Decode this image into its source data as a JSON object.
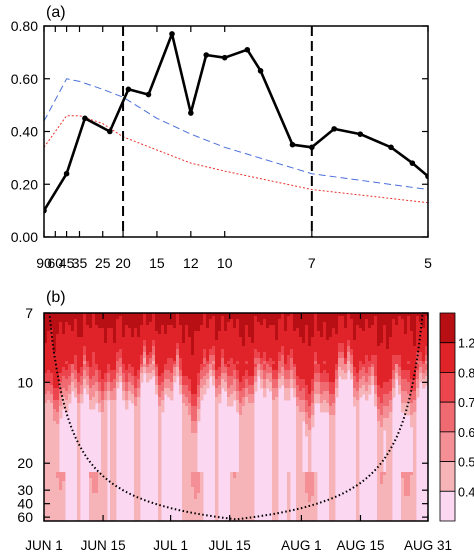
{
  "chart_data": [
    {
      "panel_label": "(a)",
      "type": "line",
      "x_scale": "reciprocal",
      "x_ticks": [
        90,
        60,
        45,
        35,
        25,
        20,
        15,
        12,
        10,
        7,
        5
      ],
      "xlim": [
        90,
        5
      ],
      "ylim": [
        0,
        0.8
      ],
      "y_ticks": [
        "0.00",
        "0.20",
        "0.40",
        "0.60",
        "0.80"
      ],
      "vertical_lines": [
        20,
        7
      ],
      "series": [
        {
          "style": "solid-black-dots",
          "x": [
            90,
            45,
            32,
            23,
            19,
            16,
            13.5,
            12,
            11,
            10,
            9,
            8.5,
            7.5,
            7,
            6.5,
            6,
            5.5,
            5.2,
            5
          ],
          "y": [
            0.1,
            0.24,
            0.45,
            0.4,
            0.56,
            0.54,
            0.77,
            0.47,
            0.69,
            0.68,
            0.71,
            0.63,
            0.35,
            0.34,
            0.41,
            0.39,
            0.34,
            0.28,
            0.23
          ]
        },
        {
          "style": "dashed-blue",
          "color": "#4a6fd8",
          "x": [
            90,
            45,
            35,
            25,
            20,
            15,
            12,
            10,
            7,
            5
          ],
          "y": [
            0.44,
            0.6,
            0.59,
            0.56,
            0.53,
            0.45,
            0.39,
            0.34,
            0.24,
            0.18
          ]
        },
        {
          "style": "dotted-red",
          "color": "#e8322c",
          "x": [
            90,
            45,
            35,
            25,
            20,
            15,
            12,
            10,
            7,
            5
          ],
          "y": [
            0.34,
            0.46,
            0.46,
            0.43,
            0.38,
            0.33,
            0.28,
            0.25,
            0.18,
            0.13
          ]
        }
      ]
    },
    {
      "panel_label": "(b)",
      "type": "heatmap",
      "x_tick_labels": [
        "JUN 1",
        "JUN 15",
        "JUL 1",
        "JUL 15",
        "AUG 1",
        "AUG 15",
        "AUG 31"
      ],
      "x_tick_days": [
        0,
        14,
        30,
        44,
        61,
        75,
        91
      ],
      "y_scale": "reciprocal",
      "y_ticks": [
        7,
        10,
        20,
        30,
        40,
        60
      ],
      "ylim": [
        7,
        70
      ],
      "colorbar_labels": [
        "0.4",
        "0.5",
        "0.6",
        "0.7",
        "0.8",
        "1.2"
      ],
      "colorbar_colors": [
        "#fbd7f2",
        "#f7b4b8",
        "#f48f95",
        "#f06a72",
        "#ec454e",
        "#e02328",
        "#b80f14"
      ],
      "cone_of_influence": true
    }
  ]
}
